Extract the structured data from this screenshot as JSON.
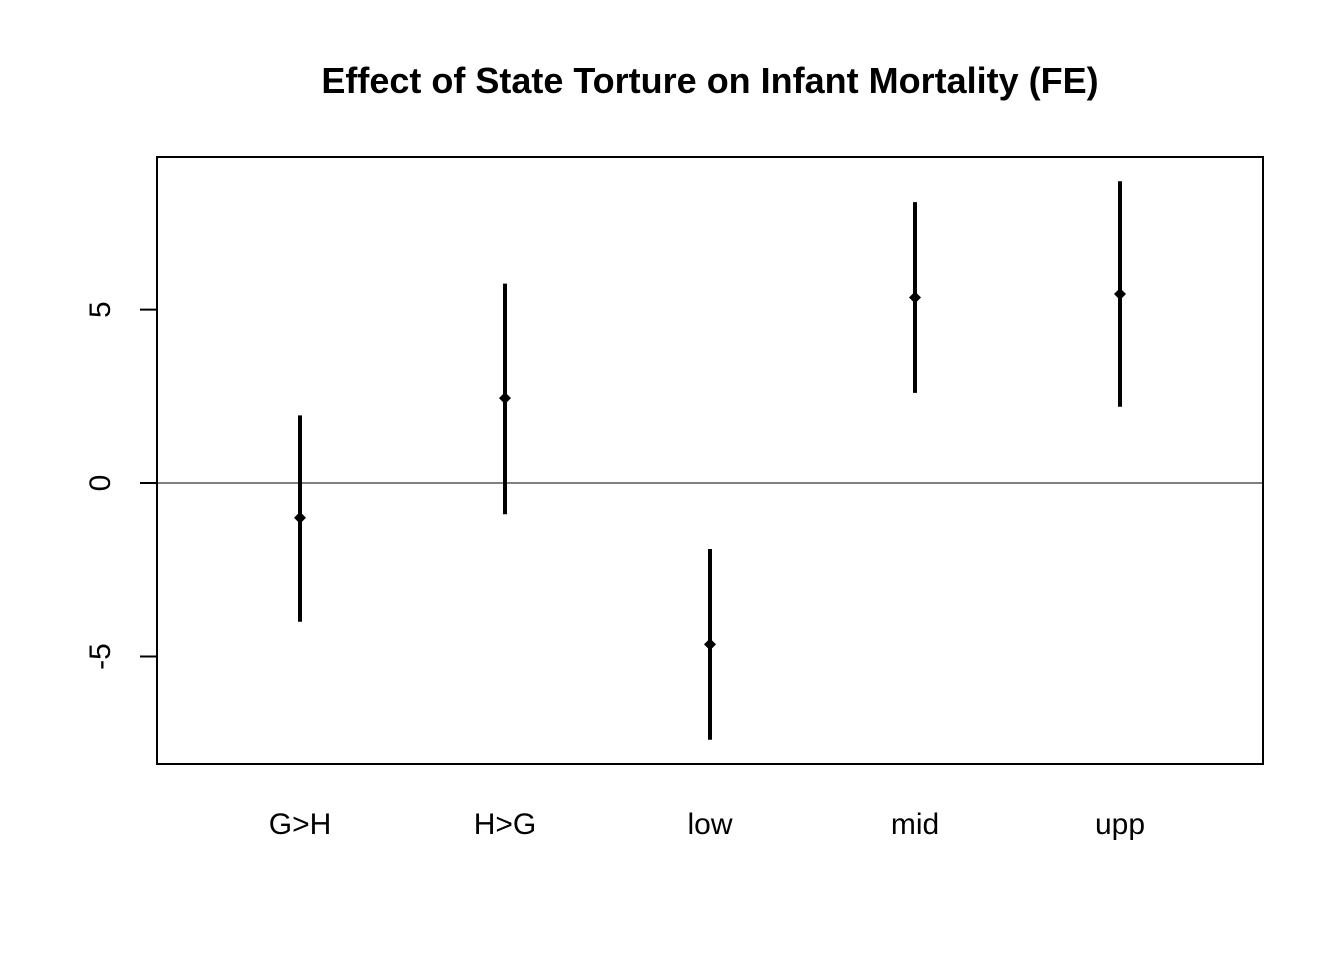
{
  "chart_data": {
    "type": "scatter",
    "title": "Effect of State Torture on Infant Mortality (FE)",
    "xlabel": "",
    "ylabel": "",
    "categories": [
      "G>H",
      "H>G",
      "low",
      "mid",
      "upp"
    ],
    "series": [
      {
        "estimate": [
          -1.0,
          2.45,
          -4.65,
          5.35,
          5.45
        ],
        "lower": [
          -4.0,
          -0.9,
          -7.4,
          2.6,
          2.2
        ],
        "upper": [
          1.95,
          5.75,
          -1.9,
          8.1,
          8.7
        ]
      }
    ],
    "ylim": [
      -8.1,
      9.4
    ],
    "y_ticks": [
      -5,
      0,
      5
    ],
    "y_tick_labels": [
      "-5",
      "0",
      "5"
    ],
    "reference_line_y": 0,
    "grid": false,
    "legend": "none",
    "colors": {
      "marks": "#000000",
      "axes": "#000000",
      "background": "#ffffff"
    }
  }
}
